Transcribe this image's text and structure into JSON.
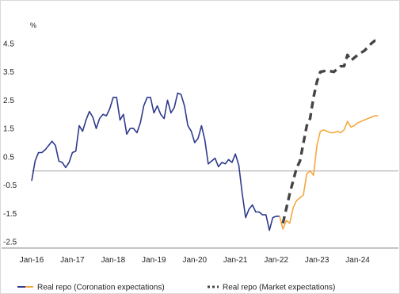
{
  "chart_data": {
    "type": "line",
    "title": "",
    "unit_label": "%",
    "xlabel": "",
    "ylabel": "",
    "ylim": [
      -2.5,
      4.5
    ],
    "xlim": [
      "2016-01",
      "2024-12"
    ],
    "y_ticks": [
      "4.5",
      "3.5",
      "2.5",
      "1.5",
      "0.5",
      "-0.5",
      "-1.5",
      "-2.5"
    ],
    "x_ticks": [
      "Jan-16",
      "Jan-17",
      "Jan-18",
      "Jan-19",
      "Jan-20",
      "Jan-21",
      "Jan-22",
      "Jan-23",
      "Jan-24"
    ],
    "zero_line": true,
    "grid": false,
    "legend_position": "bottom",
    "series": [
      {
        "name": "Real repo (Coronation expectations)",
        "color_historical": "#2e3a8c",
        "color_forecast": "#f5a840",
        "historical": [
          [
            "2016-01",
            -0.35
          ],
          [
            "2016-02",
            0.35
          ],
          [
            "2016-03",
            0.65
          ],
          [
            "2016-04",
            0.65
          ],
          [
            "2016-05",
            0.75
          ],
          [
            "2016-06",
            0.9
          ],
          [
            "2016-07",
            1.05
          ],
          [
            "2016-08",
            0.9
          ],
          [
            "2016-09",
            0.35
          ],
          [
            "2016-10",
            0.3
          ],
          [
            "2016-11",
            0.12
          ],
          [
            "2016-12",
            0.3
          ],
          [
            "2017-01",
            0.65
          ],
          [
            "2017-02",
            0.7
          ],
          [
            "2017-03",
            1.6
          ],
          [
            "2017-04",
            1.4
          ],
          [
            "2017-05",
            1.8
          ],
          [
            "2017-06",
            2.1
          ],
          [
            "2017-07",
            1.9
          ],
          [
            "2017-08",
            1.5
          ],
          [
            "2017-09",
            1.85
          ],
          [
            "2017-10",
            2.0
          ],
          [
            "2017-11",
            1.95
          ],
          [
            "2017-12",
            2.2
          ],
          [
            "2018-01",
            2.6
          ],
          [
            "2018-02",
            2.6
          ],
          [
            "2018-03",
            1.8
          ],
          [
            "2018-04",
            2.0
          ],
          [
            "2018-05",
            1.3
          ],
          [
            "2018-06",
            1.5
          ],
          [
            "2018-07",
            1.5
          ],
          [
            "2018-08",
            1.35
          ],
          [
            "2018-09",
            1.7
          ],
          [
            "2018-10",
            2.3
          ],
          [
            "2018-11",
            2.6
          ],
          [
            "2018-12",
            2.6
          ],
          [
            "2019-01",
            2.05
          ],
          [
            "2019-02",
            2.3
          ],
          [
            "2019-03",
            2.0
          ],
          [
            "2019-04",
            1.85
          ],
          [
            "2019-05",
            2.5
          ],
          [
            "2019-06",
            2.05
          ],
          [
            "2019-07",
            2.25
          ],
          [
            "2019-08",
            2.75
          ],
          [
            "2019-09",
            2.7
          ],
          [
            "2019-10",
            2.3
          ],
          [
            "2019-11",
            1.6
          ],
          [
            "2019-12",
            1.4
          ],
          [
            "2020-01",
            1.0
          ],
          [
            "2020-02",
            1.15
          ],
          [
            "2020-03",
            1.6
          ],
          [
            "2020-04",
            1.1
          ],
          [
            "2020-05",
            0.25
          ],
          [
            "2020-06",
            0.35
          ],
          [
            "2020-07",
            0.45
          ],
          [
            "2020-08",
            0.15
          ],
          [
            "2020-09",
            0.3
          ],
          [
            "2020-10",
            0.25
          ],
          [
            "2020-11",
            0.4
          ],
          [
            "2020-12",
            0.3
          ],
          [
            "2021-01",
            0.6
          ],
          [
            "2021-02",
            0.2
          ],
          [
            "2021-03",
            -0.8
          ],
          [
            "2021-04",
            -1.65
          ],
          [
            "2021-05",
            -1.35
          ],
          [
            "2021-06",
            -1.2
          ],
          [
            "2021-07",
            -1.45
          ],
          [
            "2021-08",
            -1.45
          ],
          [
            "2021-09",
            -1.55
          ],
          [
            "2021-10",
            -1.55
          ],
          [
            "2021-11",
            -2.1
          ],
          [
            "2021-12",
            -1.65
          ],
          [
            "2022-01",
            -1.6
          ],
          [
            "2022-02",
            -1.6
          ]
        ],
        "forecast": [
          [
            "2022-02",
            -1.6
          ],
          [
            "2022-03",
            -2.05
          ],
          [
            "2022-04",
            -1.75
          ],
          [
            "2022-05",
            -1.85
          ],
          [
            "2022-06",
            -1.3
          ],
          [
            "2022-07",
            -1.05
          ],
          [
            "2022-08",
            -0.95
          ],
          [
            "2022-09",
            -0.85
          ],
          [
            "2022-10",
            -0.1
          ],
          [
            "2022-11",
            0.0
          ],
          [
            "2022-12",
            -0.15
          ],
          [
            "2023-01",
            0.9
          ],
          [
            "2023-02",
            1.4
          ],
          [
            "2023-03",
            1.45
          ],
          [
            "2023-04",
            1.4
          ],
          [
            "2023-05",
            1.35
          ],
          [
            "2023-06",
            1.35
          ],
          [
            "2023-07",
            1.4
          ],
          [
            "2023-08",
            1.35
          ],
          [
            "2023-09",
            1.45
          ],
          [
            "2023-10",
            1.75
          ],
          [
            "2023-11",
            1.55
          ],
          [
            "2023-12",
            1.6
          ],
          [
            "2024-01",
            1.7
          ],
          [
            "2024-02",
            1.75
          ],
          [
            "2024-03",
            1.8
          ],
          [
            "2024-04",
            1.85
          ],
          [
            "2024-05",
            1.9
          ],
          [
            "2024-06",
            1.95
          ],
          [
            "2024-07",
            1.95
          ]
        ]
      },
      {
        "name": "Real repo (Market expectations)",
        "color": "#444444",
        "style": "dashed",
        "values": [
          [
            "2022-03",
            -1.85
          ],
          [
            "2022-05",
            -0.8
          ],
          [
            "2022-07",
            0.1
          ],
          [
            "2022-08",
            0.35
          ],
          [
            "2022-10",
            1.6
          ],
          [
            "2022-11",
            1.85
          ],
          [
            "2022-12",
            2.6
          ],
          [
            "2023-01",
            3.15
          ],
          [
            "2023-02",
            3.5
          ],
          [
            "2023-04",
            3.55
          ],
          [
            "2023-06",
            3.5
          ],
          [
            "2023-08",
            3.7
          ],
          [
            "2023-09",
            3.7
          ],
          [
            "2023-10",
            4.1
          ],
          [
            "2023-11",
            3.9
          ],
          [
            "2024-01",
            4.1
          ],
          [
            "2024-03",
            4.25
          ],
          [
            "2024-05",
            4.5
          ],
          [
            "2024-06",
            4.6
          ],
          [
            "2024-07",
            4.6
          ]
        ]
      }
    ]
  }
}
